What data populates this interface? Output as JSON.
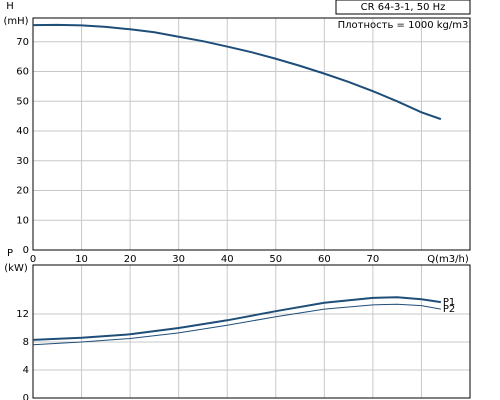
{
  "chart_data": [
    {
      "type": "line",
      "ylabel": [
        "H",
        "(mH)"
      ],
      "xlabel": "Q(m3/h)",
      "annotations": [
        "CR 64-3-1, 50 Hz",
        "Плотность = 1000 kg/m3"
      ],
      "x": [
        0,
        5,
        10,
        15,
        20,
        25,
        30,
        35,
        40,
        45,
        50,
        55,
        60,
        65,
        70,
        75,
        80,
        84
      ],
      "series": [
        {
          "name": "H",
          "color": "#1f4e79",
          "width": 2,
          "values": [
            75.6,
            75.7,
            75.5,
            75,
            74.2,
            73.2,
            71.7,
            70.2,
            68.4,
            66.5,
            64.3,
            61.9,
            59.3,
            56.5,
            53.4,
            50,
            46.3,
            44
          ]
        }
      ],
      "xlim": [
        0,
        90
      ],
      "xticks": [
        0,
        10,
        20,
        30,
        40,
        50,
        60,
        70,
        80
      ],
      "xtick_labels": true,
      "ylim": [
        0,
        78
      ],
      "yticks": [
        0,
        10,
        20,
        30,
        40,
        50,
        60,
        70
      ],
      "grid": true
    },
    {
      "type": "line",
      "ylabel": [
        "P",
        "(kW)"
      ],
      "x": [
        0,
        10,
        20,
        30,
        40,
        50,
        60,
        70,
        75,
        80,
        84
      ],
      "series": [
        {
          "name": "P1",
          "color": "#1f4e79",
          "width": 2,
          "values": [
            8.3,
            8.6,
            9.1,
            10,
            11.1,
            12.4,
            13.6,
            14.3,
            14.4,
            14.1,
            13.7
          ]
        },
        {
          "name": "P2",
          "color": "#1f4e79",
          "width": 1,
          "values": [
            7.6,
            8,
            8.5,
            9.3,
            10.4,
            11.6,
            12.7,
            13.3,
            13.4,
            13.2,
            12.7
          ]
        }
      ],
      "xlim": [
        0,
        90
      ],
      "xticks": [
        0,
        10,
        20,
        30,
        40,
        50,
        60,
        70,
        80
      ],
      "xtick_labels": false,
      "ylim": [
        0,
        19
      ],
      "yticks": [
        0,
        4,
        8,
        12
      ],
      "grid": true
    }
  ]
}
